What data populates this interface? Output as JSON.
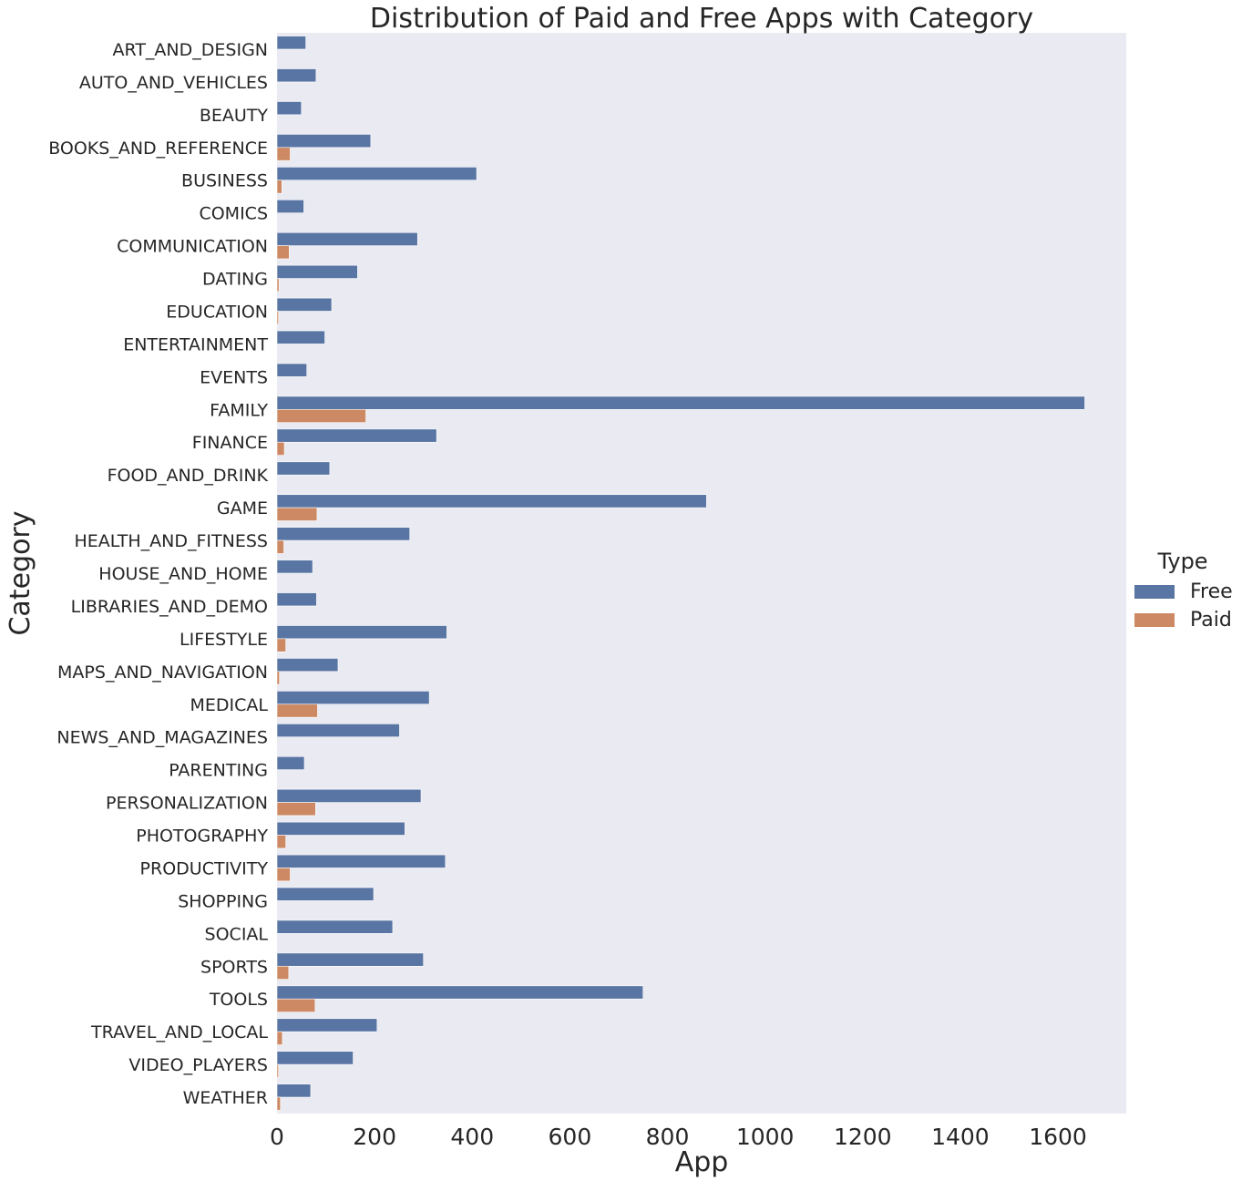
{
  "chart_data": {
    "type": "bar",
    "orientation": "horizontal",
    "title": "Distribution of Paid and Free Apps with Category",
    "xlabel": "App",
    "ylabel": "Category",
    "xlim": [
      0,
      1740
    ],
    "xticks": [
      0,
      200,
      400,
      600,
      800,
      1000,
      1200,
      1400,
      1600
    ],
    "grid": false,
    "legend": {
      "title": "Type",
      "placement": "right"
    },
    "categories": [
      "ART_AND_DESIGN",
      "AUTO_AND_VEHICLES",
      "BEAUTY",
      "BOOKS_AND_REFERENCE",
      "BUSINESS",
      "COMICS",
      "COMMUNICATION",
      "DATING",
      "EDUCATION",
      "ENTERTAINMENT",
      "EVENTS",
      "FAMILY",
      "FINANCE",
      "FOOD_AND_DRINK",
      "GAME",
      "HEALTH_AND_FITNESS",
      "HOUSE_AND_HOME",
      "LIBRARIES_AND_DEMO",
      "LIFESTYLE",
      "MAPS_AND_NAVIGATION",
      "MEDICAL",
      "NEWS_AND_MAGAZINES",
      "PARENTING",
      "PERSONALIZATION",
      "PHOTOGRAPHY",
      "PRODUCTIVITY",
      "SHOPPING",
      "SOCIAL",
      "SPORTS",
      "TOOLS",
      "TRAVEL_AND_LOCAL",
      "VIDEO_PLAYERS",
      "WEATHER"
    ],
    "series": [
      {
        "name": "Free",
        "color": "#5975a4",
        "values": [
          59,
          80,
          50,
          192,
          409,
          55,
          288,
          165,
          112,
          98,
          61,
          1655,
          327,
          108,
          880,
          272,
          73,
          81,
          348,
          125,
          312,
          251,
          56,
          295,
          262,
          345,
          198,
          237,
          300,
          750,
          205,
          156,
          69
        ]
      },
      {
        "name": "Paid",
        "color": "#cc8963",
        "values": [
          0,
          0,
          0,
          27,
          10,
          0,
          25,
          4,
          3,
          0,
          0,
          182,
          15,
          0,
          82,
          14,
          0,
          0,
          18,
          5,
          83,
          0,
          0,
          79,
          18,
          27,
          0,
          0,
          24,
          78,
          11,
          3,
          7
        ]
      }
    ]
  }
}
